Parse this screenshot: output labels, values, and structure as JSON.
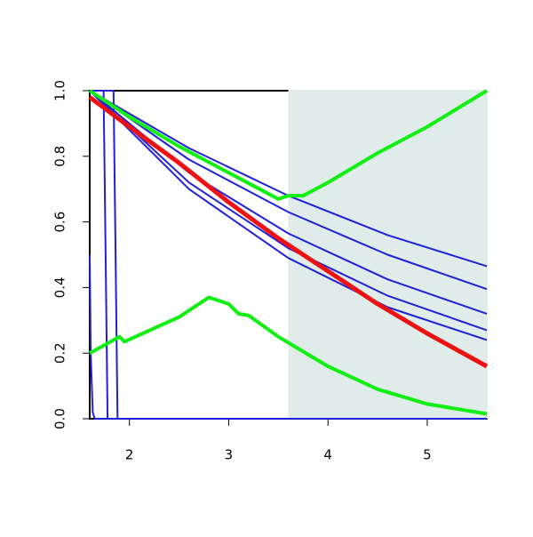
{
  "chart_data": {
    "type": "line",
    "xlim": [
      1.6,
      5.6
    ],
    "ylim": [
      0,
      1
    ],
    "xticks": [
      2,
      3,
      4,
      5
    ],
    "yticks": [
      {
        "value": 0,
        "label": "0.0"
      },
      0.2,
      0.4,
      0.6,
      0.8,
      {
        "value": 1,
        "label": "1.0"
      }
    ],
    "shaded_region": {
      "x": [
        3.6,
        5.6
      ],
      "color": "#dfecea"
    },
    "series": [
      {
        "color": "#2020d8",
        "width": 2,
        "x": [
          1.6,
          2.6,
          3.6,
          4.6,
          5.6
        ],
        "values": [
          1,
          0.825,
          0.68,
          0.56,
          0.465
        ]
      },
      {
        "color": "#2020d8",
        "width": 2,
        "x": [
          1.6,
          2.6,
          3.6,
          4.6,
          5.6
        ],
        "values": [
          1,
          0.79,
          0.63,
          0.5,
          0.395
        ]
      },
      {
        "color": "#2020d8",
        "width": 2,
        "x": [
          1.6,
          2.6,
          3.6,
          4.6,
          5.6
        ],
        "values": [
          1,
          0.75,
          0.565,
          0.425,
          0.32
        ]
      },
      {
        "color": "#2020d8",
        "width": 2,
        "x": [
          1.6,
          2.6,
          3.6,
          4.6,
          5.6
        ],
        "values": [
          1,
          0.72,
          0.52,
          0.375,
          0.27
        ]
      },
      {
        "color": "#2020d8",
        "width": 2,
        "x": [
          1.6,
          2.6,
          3.6,
          4.6,
          5.6
        ],
        "values": [
          1,
          0.7,
          0.49,
          0.34,
          0.24
        ]
      },
      {
        "color": "#2020d8",
        "width": 2,
        "x": [
          1.6,
          1.61,
          1.63,
          1.65,
          5.6
        ],
        "values": [
          0.5,
          0.2,
          0.02,
          0,
          0
        ]
      },
      {
        "color": "#2020d8",
        "width": 2,
        "x": [
          1.6,
          1.74,
          1.76,
          1.78,
          5.6
        ],
        "values": [
          1,
          1,
          0.5,
          0,
          0
        ]
      },
      {
        "color": "#2020d8",
        "width": 2,
        "x": [
          1.6,
          1.84,
          1.86,
          1.88,
          5.6
        ],
        "values": [
          1,
          1,
          0.5,
          0,
          0
        ]
      },
      {
        "color": "#ee1111",
        "width": 5,
        "x": [
          1.6,
          2,
          2.5,
          3,
          3.5,
          4,
          4.5,
          5,
          5.6
        ],
        "values": [
          0.98,
          0.89,
          0.78,
          0.66,
          0.55,
          0.45,
          0.35,
          0.26,
          0.16
        ]
      },
      {
        "color": "#11ee11",
        "width": 4,
        "x": [
          1.6,
          2,
          2.5,
          3,
          3.5,
          3.6,
          3.75,
          4,
          4.5,
          5,
          5.6
        ],
        "values": [
          1,
          0.92,
          0.83,
          0.75,
          0.67,
          0.68,
          0.68,
          0.72,
          0.81,
          0.89,
          1
        ]
      },
      {
        "color": "#11ee11",
        "width": 4,
        "x": [
          1.6,
          1.9,
          1.95,
          2.5,
          2.8,
          2.9,
          3,
          3.1,
          3.2,
          3.5,
          4,
          4.5,
          5,
          5.6
        ],
        "values": [
          0.2,
          0.25,
          0.235,
          0.31,
          0.37,
          0.36,
          0.35,
          0.32,
          0.315,
          0.25,
          0.16,
          0.09,
          0.045,
          0.015
        ]
      }
    ]
  }
}
